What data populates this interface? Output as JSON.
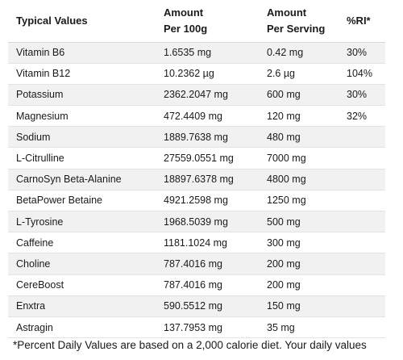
{
  "headers": {
    "name": "Typical Values",
    "per100_line1": "Amount",
    "per100_line2": "Per 100g",
    "serving_line1": "Amount",
    "serving_line2": "Per Serving",
    "ri": "%RI*"
  },
  "rows": [
    {
      "name": "Vitamin B6",
      "per100": "1.6535 mg",
      "serving": "0.42 mg",
      "ri": "30%"
    },
    {
      "name": "Vitamin B12",
      "per100": "10.2362 µg",
      "serving": "2.6 µg",
      "ri": "104%"
    },
    {
      "name": "Potassium",
      "per100": "2362.2047 mg",
      "serving": "600 mg",
      "ri": "30%"
    },
    {
      "name": "Magnesium",
      "per100": "472.4409 mg",
      "serving": "120 mg",
      "ri": "32%"
    },
    {
      "name": "Sodium",
      "per100": "1889.7638 mg",
      "serving": "480 mg",
      "ri": ""
    },
    {
      "name": "L-Citrulline",
      "per100": "27559.0551 mg",
      "serving": "7000 mg",
      "ri": ""
    },
    {
      "name": "CarnoSyn Beta-Alanine",
      "per100": "18897.6378 mg",
      "serving": "4800 mg",
      "ri": ""
    },
    {
      "name": "BetaPower Betaine",
      "per100": "4921.2598 mg",
      "serving": "1250 mg",
      "ri": ""
    },
    {
      "name": "L-Tyrosine",
      "per100": "1968.5039 mg",
      "serving": "500 mg",
      "ri": ""
    },
    {
      "name": "Caffeine",
      "per100": "1181.1024 mg",
      "serving": "300 mg",
      "ri": ""
    },
    {
      "name": "Choline",
      "per100": "787.4016 mg",
      "serving": "200 mg",
      "ri": ""
    },
    {
      "name": "CereBoost",
      "per100": "787.4016 mg",
      "serving": "200 mg",
      "ri": ""
    },
    {
      "name": "Enxtra",
      "per100": "590.5512 mg",
      "serving": "150 mg",
      "ri": ""
    },
    {
      "name": "Astragin",
      "per100": "137.7953 mg",
      "serving": "35 mg",
      "ri": ""
    }
  ],
  "footnote": "*Percent Daily Values are based on a 2,000 calorie diet. Your daily values"
}
